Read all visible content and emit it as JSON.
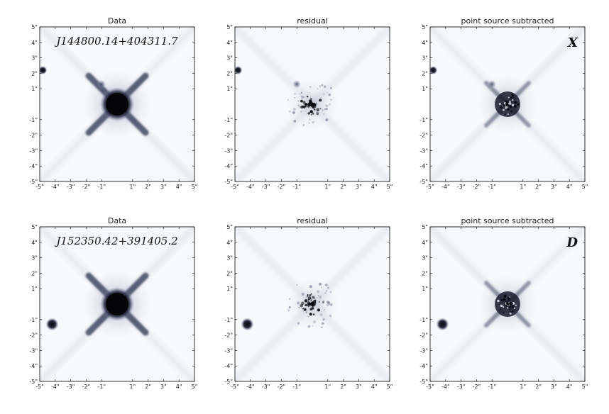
{
  "rows": [
    {
      "object_name": "J144800.14+404311.7",
      "panel_label": "X",
      "panels": [
        {
          "title": "Data",
          "kind": "data"
        },
        {
          "title": "residual",
          "kind": "residual"
        },
        {
          "title": "point source subtracted",
          "kind": "subtracted"
        }
      ],
      "companion": {
        "x": -4.8,
        "y": 2.2
      },
      "secondary_blob": {
        "x": -1.0,
        "y": 1.3
      }
    },
    {
      "object_name": "J152350.42+391405.2",
      "panel_label": "D",
      "panels": [
        {
          "title": "Data",
          "kind": "data"
        },
        {
          "title": "residual",
          "kind": "residual"
        },
        {
          "title": "point source subtracted",
          "kind": "subtracted"
        }
      ],
      "companion": {
        "x": -4.2,
        "y": -1.3
      },
      "secondary_blob": null
    }
  ],
  "axis": {
    "x_ticks": [
      "-5\"",
      "-4\"",
      "-3\"",
      "-2\"",
      "-1\"",
      "1\"",
      "2\"",
      "3\"",
      "4\"",
      "5\""
    ],
    "x_values": [
      -5,
      -4,
      -3,
      -2,
      -1,
      1,
      2,
      3,
      4,
      5
    ],
    "y_ticks": [
      "5\"",
      "4\"",
      "3\"",
      "2\"",
      "1\"",
      "-1\"",
      "-2\"",
      "-3\"",
      "-4\"",
      "-5\""
    ],
    "y_values": [
      5,
      4,
      3,
      2,
      1,
      -1,
      -2,
      -3,
      -4,
      -5
    ],
    "range": [
      -5,
      5
    ]
  },
  "colors": {
    "background": "#f7f9fb",
    "ink": "#0b0b12",
    "halo": "#2c3450"
  }
}
